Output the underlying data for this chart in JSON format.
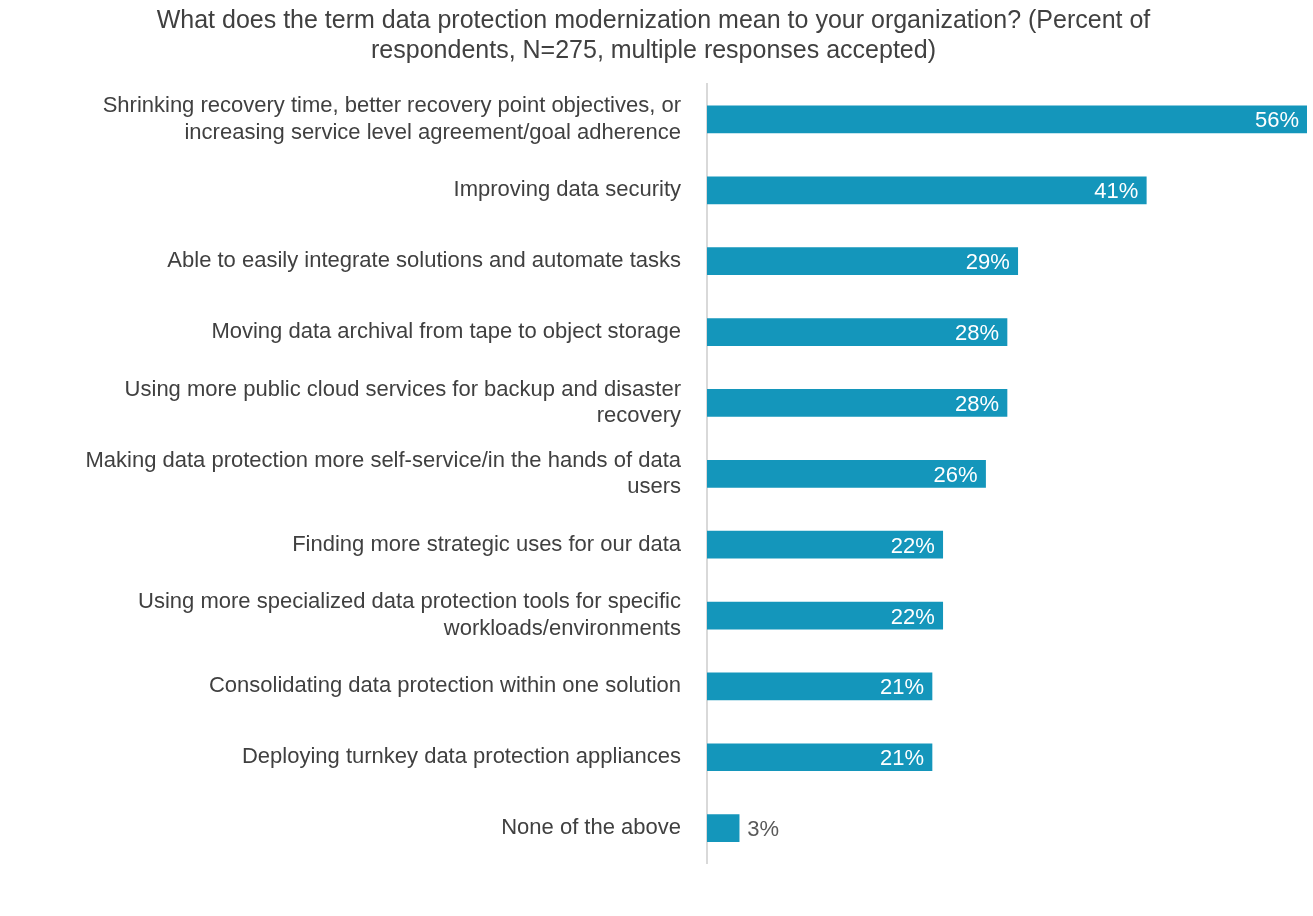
{
  "chart_data": {
    "type": "bar",
    "orientation": "horizontal",
    "title": "What does the term data protection modernization mean to your organization? (Percent of respondents, N=275, multiple responses accepted)",
    "categories": [
      "Shrinking recovery time, better recovery point objectives, or increasing service level agreement/goal adherence",
      "Improving data security",
      "Able to easily integrate solutions and automate tasks",
      "Moving data archival from tape to object storage",
      "Using more public cloud services for backup and disaster recovery",
      "Making data protection more self-service/in the hands of data users",
      "Finding more strategic uses for our data",
      "Using more specialized data protection tools for specific workloads/environments",
      "Consolidating data protection within one solution",
      "Deploying turnkey data protection appliances",
      "None of the above"
    ],
    "values": [
      56,
      41,
      29,
      28,
      28,
      26,
      22,
      22,
      21,
      21,
      3
    ],
    "value_labels": [
      "56%",
      "41%",
      "29%",
      "28%",
      "28%",
      "26%",
      "22%",
      "22%",
      "21%",
      "21%",
      "3%"
    ],
    "color": "#1496bb",
    "legend": false
  }
}
